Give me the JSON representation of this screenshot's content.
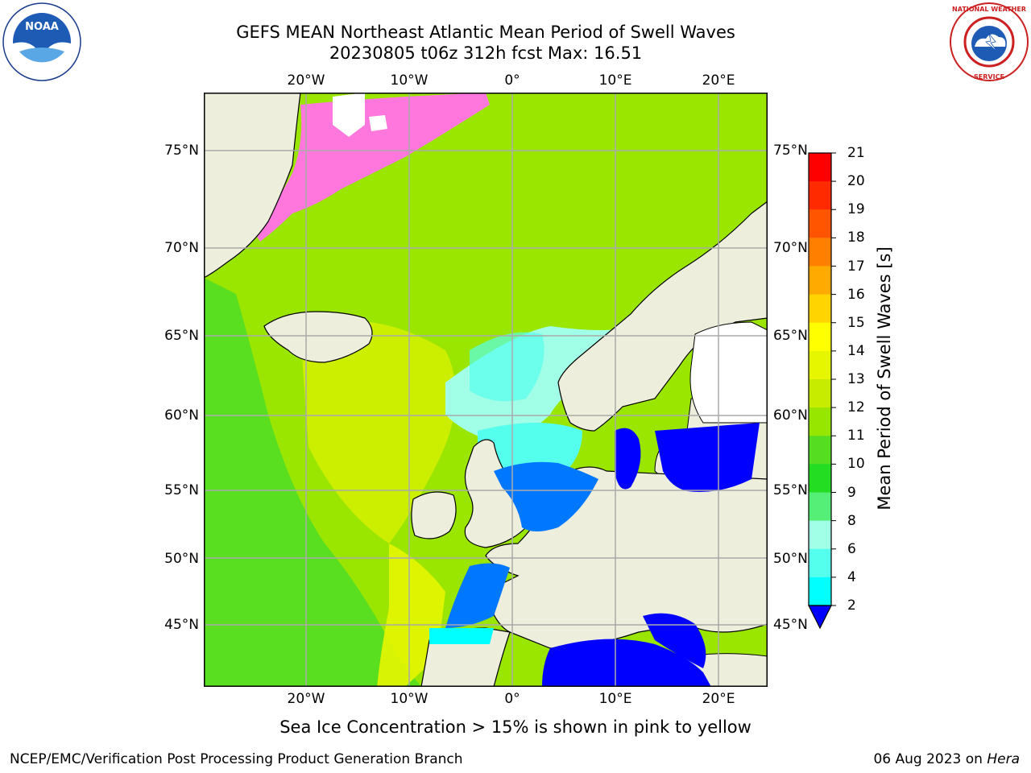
{
  "title_line1": "GEFS MEAN Northeast Atlantic Mean Period of Swell Waves",
  "title_line2": "20230805 t06z 312h fcst   Max: 16.51",
  "logos": {
    "left": "NOAA",
    "right": "NATIONAL WEATHER SERVICE"
  },
  "axes": {
    "lon_ticks": [
      "20°W",
      "10°W",
      "0°",
      "10°E",
      "20°E"
    ],
    "lat_ticks": [
      "75°N",
      "70°N",
      "65°N",
      "60°N",
      "55°N",
      "50°N",
      "45°N"
    ]
  },
  "colorbar": {
    "title": "Mean Period of Swell Waves [s]",
    "ticks": [
      "21",
      "20",
      "19",
      "18",
      "17",
      "16",
      "15",
      "14",
      "13",
      "12",
      "11",
      "10",
      "9",
      "8",
      "6",
      "4",
      "2"
    ],
    "colors_top_to_bottom": [
      "#ff0000",
      "#ff2a00",
      "#ff5500",
      "#ff8000",
      "#ffaa00",
      "#ffd400",
      "#ffff00",
      "#e6f500",
      "#c8ec00",
      "#96e600",
      "#55dd22",
      "#22dd22",
      "#55ee77",
      "#a0ffe6",
      "#55ffee",
      "#00ffff",
      "#0077ff",
      "#0000ff"
    ]
  },
  "note": "Sea Ice Concentration > 15% is shown in pink to yellow",
  "footer": {
    "left": "NCEP/EMC/Verification Post Processing Product Generation Branch",
    "date": "06 Aug 2023 on",
    "host": "Hera"
  }
}
